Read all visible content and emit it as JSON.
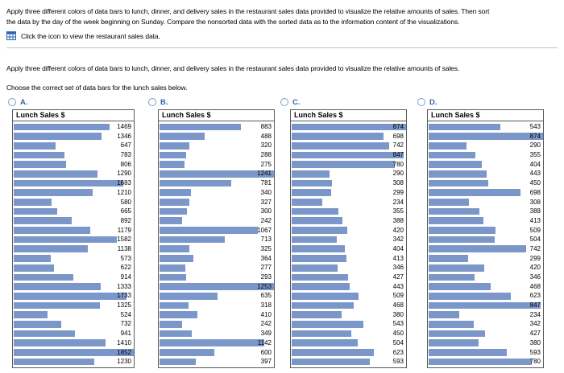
{
  "intro": {
    "lines": [
      "Apply three different colors of data bars to lunch, dinner, and delivery sales in the restaurant sales data provided to visualize the relative amounts of sales. Then sort",
      "the data by the day of the week beginning on Sunday. Compare the nonsorted data with the sorted data as to the information content of the visualizations."
    ],
    "icon": "data-table-icon",
    "icon_caption": "Click the icon to view the restaurant sales data."
  },
  "question": {
    "restatement": "Apply three different colors of data bars to lunch, dinner, and delivery sales in the restaurant sales data provided to visualize the relative amounts of sales.",
    "prompt": "Choose the correct set of data bars for the lunch sales below."
  },
  "options": [
    {
      "label": "A.",
      "table_header": "Lunch Sales $"
    },
    {
      "label": "B.",
      "table_header": "Lunch Sales $"
    },
    {
      "label": "C.",
      "table_header": "Lunch Sales $"
    },
    {
      "label": "D.",
      "table_header": "Lunch Sales $"
    }
  ],
  "chart_data": [
    {
      "type": "bar",
      "option": "A",
      "title": "Lunch Sales $",
      "orientation": "horizontal",
      "xlim": [
        0,
        1852
      ],
      "values": [
        1469,
        1346,
        647,
        783,
        806,
        1290,
        1683,
        1210,
        580,
        665,
        892,
        1179,
        1582,
        1138,
        573,
        622,
        914,
        1333,
        1733,
        1325,
        524,
        732,
        941,
        1410,
        1852,
        1230
      ]
    },
    {
      "type": "bar",
      "option": "B",
      "title": "Lunch Sales $",
      "orientation": "horizontal",
      "xlim": [
        0,
        1253
      ],
      "values": [
        883,
        488,
        320,
        288,
        275,
        1241,
        781,
        340,
        327,
        300,
        242,
        1067,
        713,
        325,
        364,
        277,
        293,
        1253,
        635,
        318,
        410,
        242,
        349,
        1142,
        600,
        397
      ]
    },
    {
      "type": "bar",
      "option": "C",
      "title": "Lunch Sales $",
      "orientation": "horizontal",
      "xlim": [
        0,
        874
      ],
      "values": [
        874,
        698,
        742,
        847,
        780,
        290,
        308,
        299,
        234,
        355,
        388,
        420,
        342,
        404,
        413,
        346,
        427,
        443,
        509,
        468,
        380,
        543,
        450,
        504,
        623,
        593
      ]
    },
    {
      "type": "bar",
      "option": "D",
      "title": "Lunch Sales $",
      "orientation": "horizontal",
      "xlim": [
        0,
        874
      ],
      "values": [
        543,
        874,
        290,
        355,
        404,
        443,
        450,
        698,
        308,
        388,
        413,
        509,
        504,
        742,
        299,
        420,
        346,
        468,
        623,
        847,
        234,
        342,
        427,
        380,
        593,
        780
      ]
    }
  ],
  "colors": {
    "bar": "#7b97c9",
    "option_label": "#2e64ad",
    "icon": "#2e64ad",
    "divider": "#c3c3c3"
  }
}
